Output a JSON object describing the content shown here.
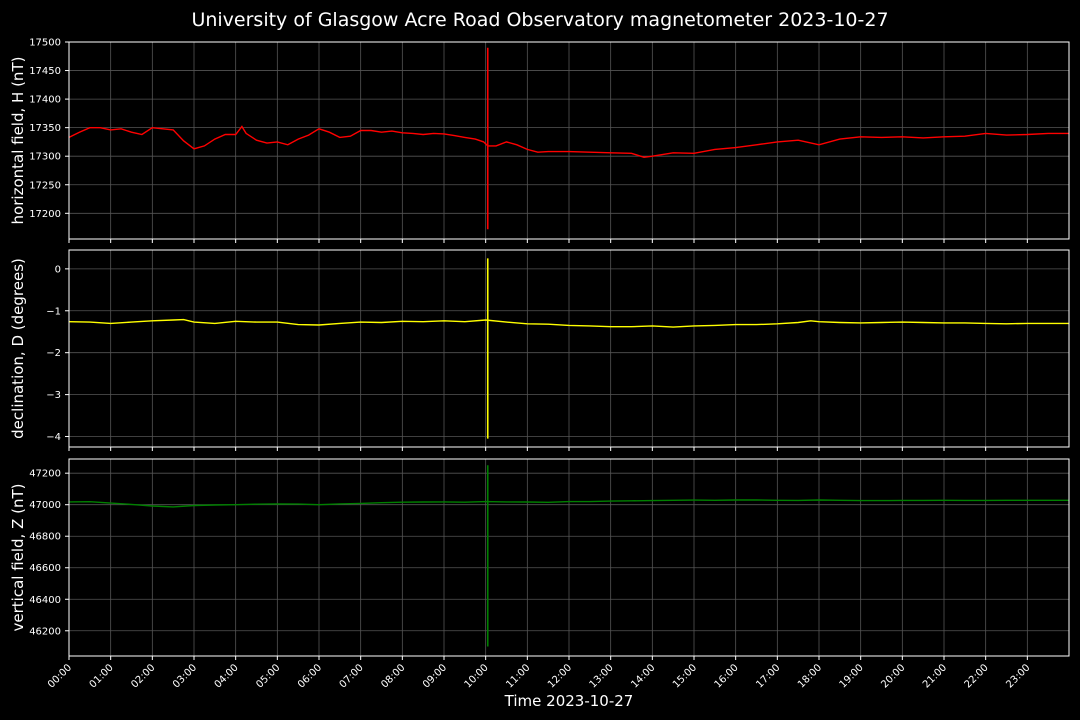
{
  "title": "University of Glasgow Acre Road Observatory magnetometer 2023-10-27",
  "chart_data": {
    "type": "line",
    "title": "University of Glasgow Acre Road Observatory magnetometer 2023-10-27",
    "xlabel": "Time 2023-10-27",
    "x_tick_labels": [
      "00:00",
      "01:00",
      "02:00",
      "03:00",
      "04:00",
      "05:00",
      "06:00",
      "07:00",
      "08:00",
      "09:00",
      "10:00",
      "11:00",
      "12:00",
      "13:00",
      "14:00",
      "15:00",
      "16:00",
      "17:00",
      "18:00",
      "19:00",
      "20:00",
      "21:00",
      "22:00",
      "23:00"
    ],
    "xlim_hours": [
      0,
      24
    ],
    "grid": true,
    "background": "#000000",
    "panels": [
      {
        "name": "H",
        "ylabel": "horizontal field, H (nT)",
        "color": "#ff0000",
        "ylim": [
          17155,
          17500
        ],
        "yticks": [
          17200,
          17250,
          17300,
          17350,
          17400,
          17450,
          17500
        ],
        "ytick_labels": [
          "17200",
          "17250",
          "17300",
          "17350",
          "17400",
          "17450",
          "17500"
        ],
        "series": {
          "x_hours": [
            0,
            0.25,
            0.5,
            0.75,
            1,
            1.25,
            1.5,
            1.75,
            2,
            2.25,
            2.5,
            2.75,
            3,
            3.25,
            3.5,
            3.75,
            4,
            4.15,
            4.25,
            4.5,
            4.75,
            5,
            5.25,
            5.5,
            5.75,
            6,
            6.25,
            6.5,
            6.75,
            7,
            7.25,
            7.5,
            7.75,
            8,
            8.25,
            8.5,
            8.75,
            9,
            9.25,
            9.5,
            9.75,
            9.95,
            10.05,
            10.25,
            10.5,
            10.75,
            11,
            11.25,
            11.5,
            12,
            12.5,
            13,
            13.5,
            13.8,
            14,
            14.5,
            15,
            15.5,
            16,
            16.5,
            17,
            17.5,
            18,
            18.5,
            19,
            19.5,
            20,
            20.5,
            21,
            21.5,
            22,
            22.5,
            23,
            23.5,
            24
          ],
          "values": [
            17333,
            17342,
            17350,
            17350,
            17346,
            17348,
            17342,
            17338,
            17350,
            17348,
            17346,
            17327,
            17313,
            17318,
            17330,
            17338,
            17338,
            17352,
            17340,
            17328,
            17323,
            17325,
            17320,
            17330,
            17337,
            17348,
            17342,
            17333,
            17335,
            17345,
            17345,
            17342,
            17344,
            17341,
            17340,
            17338,
            17340,
            17339,
            17336,
            17333,
            17330,
            17325,
            17318,
            17318,
            17325,
            17320,
            17312,
            17307,
            17308,
            17308,
            17307,
            17306,
            17305,
            17298,
            17300,
            17306,
            17305,
            17312,
            17315,
            17320,
            17325,
            17328,
            17320,
            17330,
            17334,
            17333,
            17334,
            17332,
            17334,
            17335,
            17340,
            17337,
            17338,
            17340,
            17340
          ],
          "spike": {
            "x_hour": 10.05,
            "min": 17172,
            "max": 17490
          }
        }
      },
      {
        "name": "D",
        "ylabel": "declination, D (degrees)",
        "color": "#ffff00",
        "ylim": [
          -4.25,
          0.45
        ],
        "yticks": [
          -4,
          -3,
          -2,
          -1,
          0
        ],
        "ytick_labels": [
          "−4",
          "−3",
          "−2",
          "−1",
          "0"
        ],
        "series": {
          "x_hours": [
            0,
            0.5,
            1,
            1.5,
            2,
            2.5,
            2.75,
            3,
            3.5,
            4,
            4.5,
            5,
            5.5,
            6,
            6.5,
            7,
            7.5,
            8,
            8.5,
            9,
            9.5,
            10,
            10.5,
            11,
            11.5,
            12,
            12.5,
            13,
            13.5,
            14,
            14.5,
            15,
            15.5,
            16,
            16.5,
            17,
            17.5,
            17.8,
            18,
            18.5,
            19,
            19.5,
            20,
            20.5,
            21,
            21.5,
            22,
            22.5,
            23,
            23.5,
            24
          ],
          "values": [
            -1.26,
            -1.27,
            -1.3,
            -1.27,
            -1.24,
            -1.22,
            -1.21,
            -1.27,
            -1.3,
            -1.25,
            -1.27,
            -1.27,
            -1.33,
            -1.34,
            -1.3,
            -1.27,
            -1.28,
            -1.25,
            -1.26,
            -1.24,
            -1.26,
            -1.22,
            -1.27,
            -1.31,
            -1.32,
            -1.35,
            -1.36,
            -1.38,
            -1.38,
            -1.36,
            -1.39,
            -1.36,
            -1.35,
            -1.33,
            -1.33,
            -1.31,
            -1.28,
            -1.24,
            -1.26,
            -1.28,
            -1.29,
            -1.28,
            -1.27,
            -1.28,
            -1.29,
            -1.29,
            -1.3,
            -1.31,
            -1.3,
            -1.3,
            -1.3
          ],
          "spike": {
            "x_hour": 10.05,
            "min": -4.05,
            "max": 0.25
          }
        }
      },
      {
        "name": "Z",
        "ylabel": "vertical field, Z (nT)",
        "color": "#008000",
        "ylim": [
          46040,
          47290
        ],
        "yticks": [
          46200,
          46400,
          46600,
          46800,
          47000,
          47200
        ],
        "ytick_labels": [
          "46200",
          "46400",
          "46600",
          "46800",
          "47000",
          "47200"
        ],
        "series": {
          "x_hours": [
            0,
            0.5,
            1,
            1.5,
            2,
            2.5,
            3,
            3.5,
            4,
            4.5,
            5,
            5.5,
            6,
            6.5,
            7,
            7.5,
            8,
            8.5,
            9,
            9.5,
            10,
            10.5,
            11,
            11.5,
            12,
            12.5,
            13,
            13.5,
            14,
            14.5,
            15,
            15.5,
            16,
            16.5,
            17,
            17.5,
            18,
            18.5,
            19,
            19.5,
            20,
            20.5,
            21,
            21.5,
            22,
            22.5,
            23,
            23.5,
            24
          ],
          "values": [
            47018,
            47019,
            47010,
            47002,
            46992,
            46986,
            46995,
            46998,
            47000,
            47003,
            47005,
            47004,
            47000,
            47005,
            47008,
            47013,
            47016,
            47017,
            47018,
            47016,
            47020,
            47018,
            47017,
            47015,
            47020,
            47020,
            47023,
            47025,
            47026,
            47028,
            47029,
            47028,
            47030,
            47030,
            47028,
            47027,
            47030,
            47028,
            47026,
            47026,
            47027,
            47027,
            47028,
            47027,
            47027,
            47028,
            47028,
            47028,
            47028
          ],
          "spike": {
            "x_hour": 10.05,
            "min": 46100,
            "max": 47250
          }
        }
      }
    ]
  }
}
